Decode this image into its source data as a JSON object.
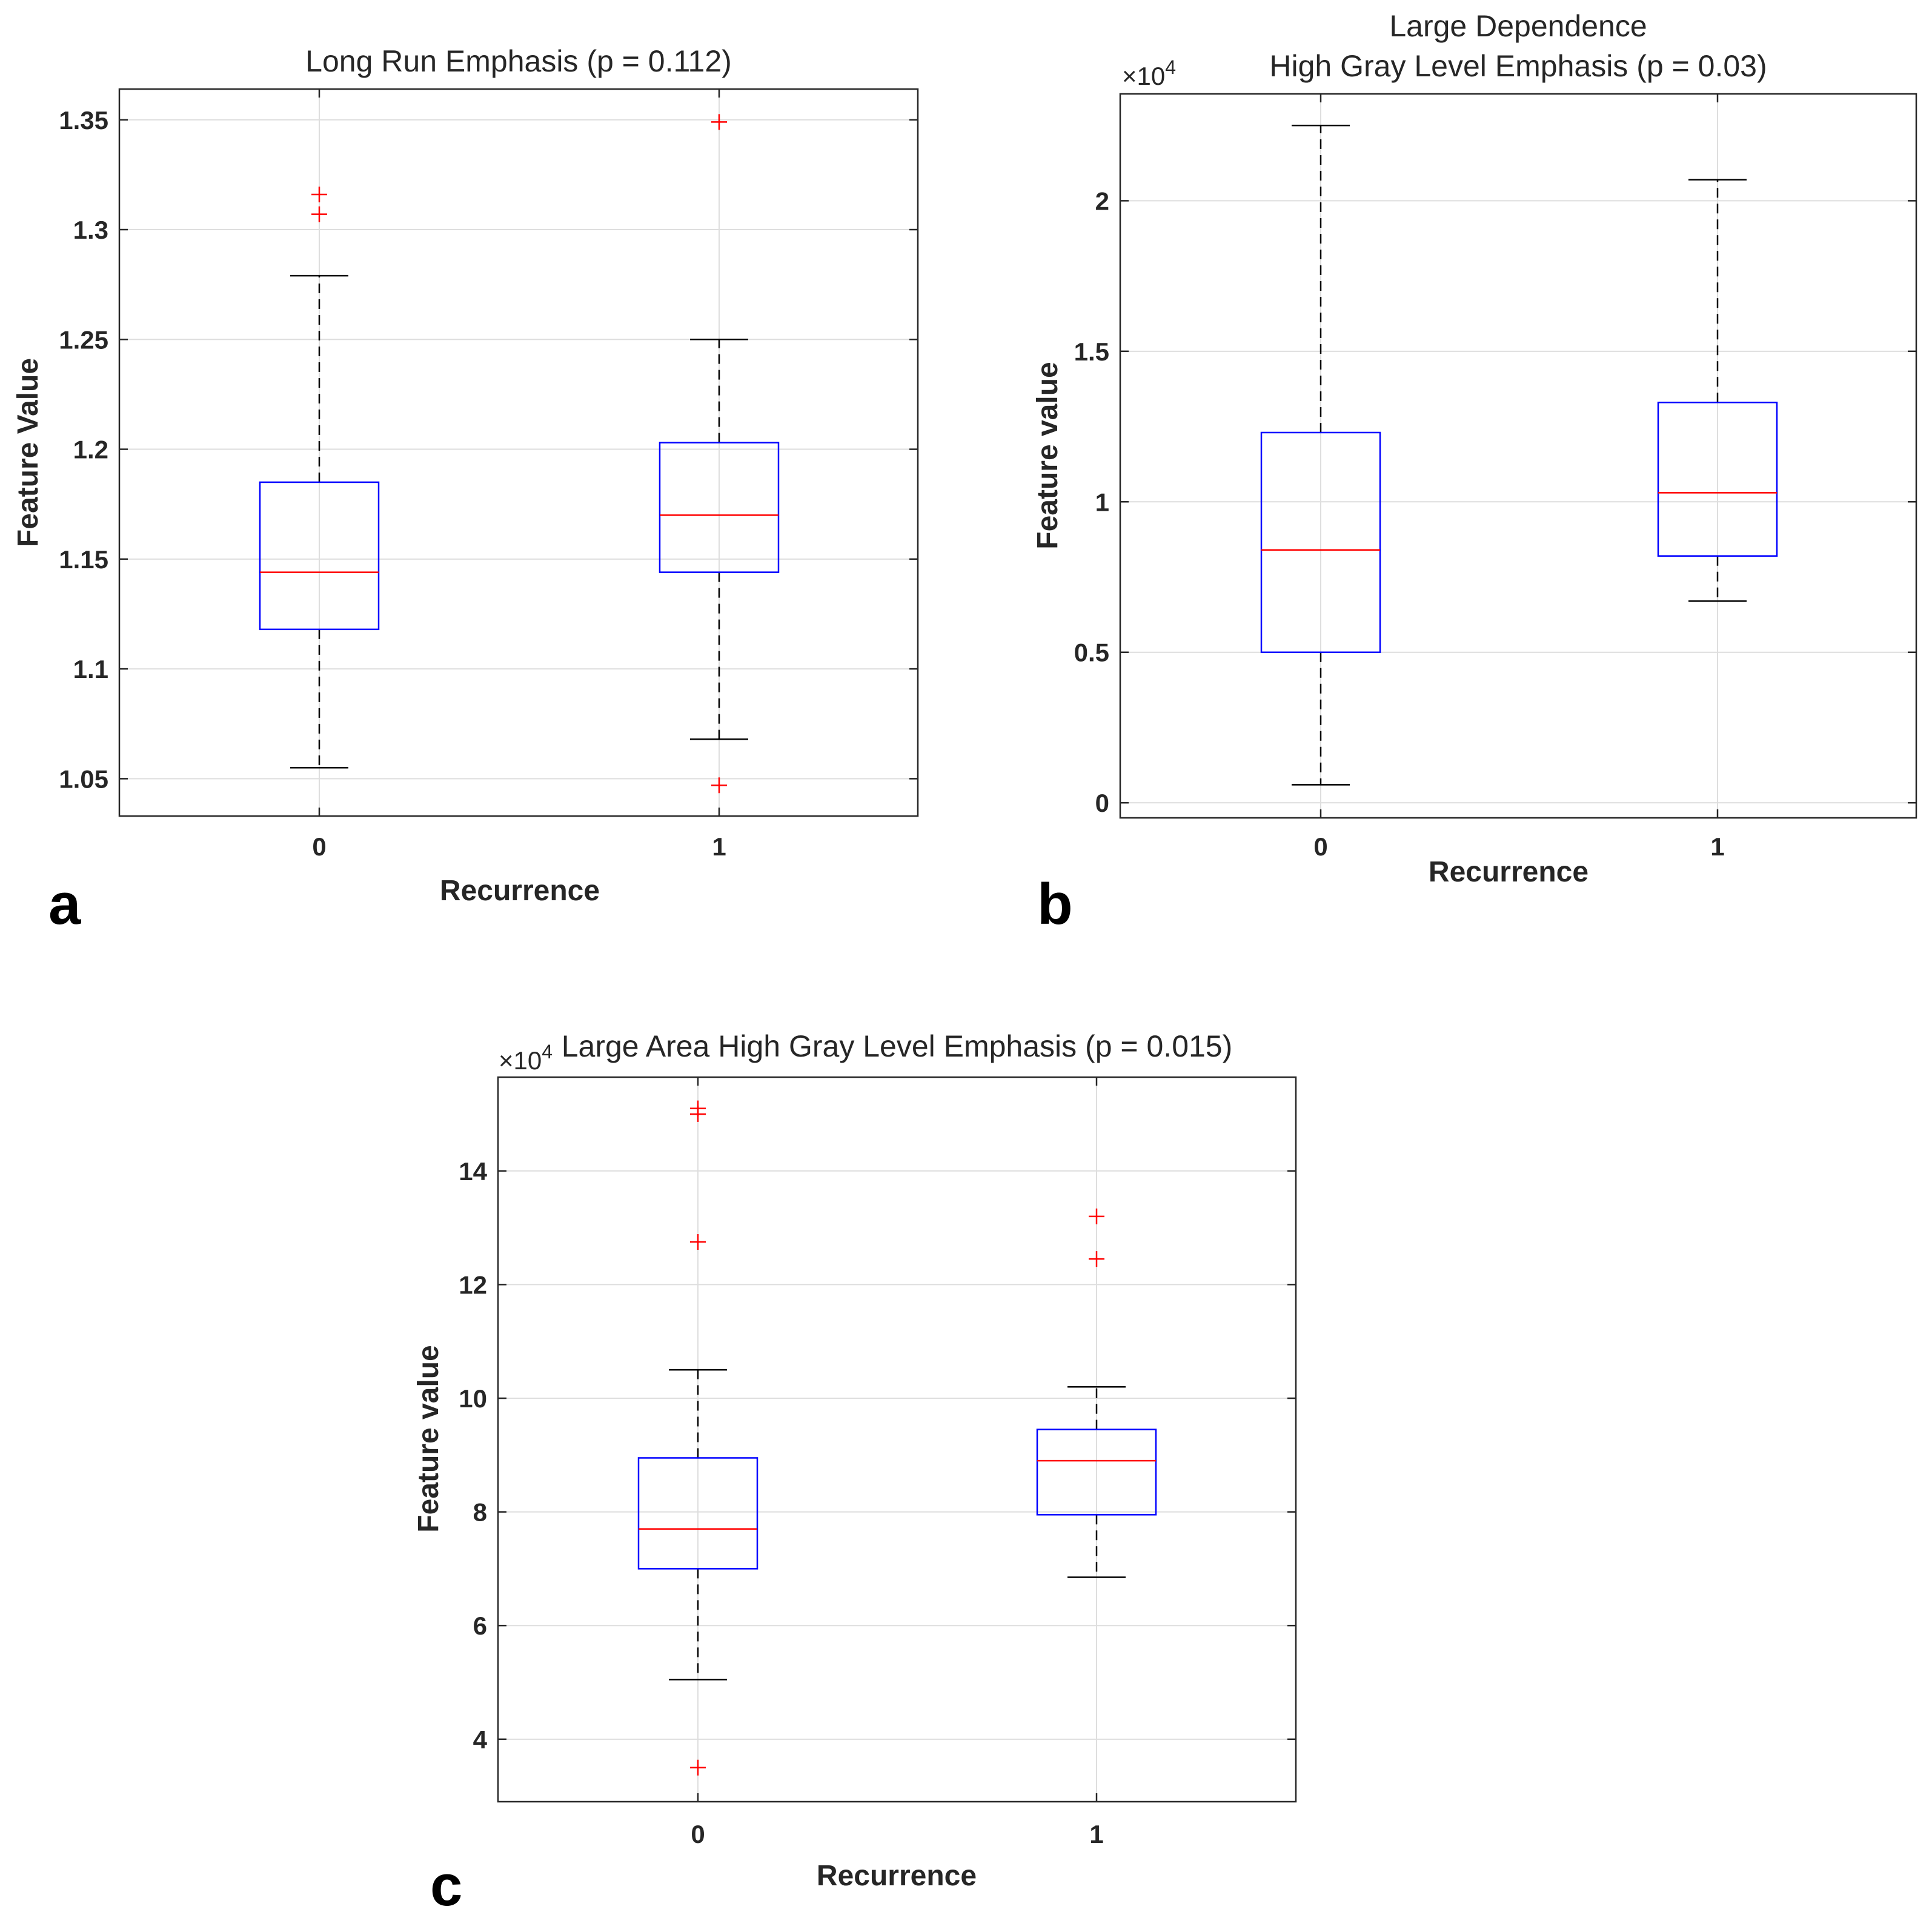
{
  "colors": {
    "box": "#0000ff",
    "median": "#ff0000",
    "outlier": "#ff0000",
    "whisker": "#000000",
    "grid": "#dedede",
    "axis": "#262626"
  },
  "chart_data": [
    {
      "type": "box",
      "panel_label": "a",
      "title": [
        "Long Run Emphasis (p = 0.112)"
      ],
      "xlabel": "Recurrence",
      "ylabel": "Feature Value",
      "exponent": "",
      "grid": true,
      "ylim": [
        1.033,
        1.364
      ],
      "yticks": [
        1.05,
        1.1,
        1.15,
        1.2,
        1.25,
        1.3,
        1.35
      ],
      "ytick_labels": [
        "1.05",
        "1.1",
        "1.15",
        "1.2",
        "1.25",
        "1.3",
        "1.35"
      ],
      "categories": [
        "0",
        "1"
      ],
      "boxes": [
        {
          "category": "0",
          "whisker_low": 1.055,
          "q1": 1.118,
          "median": 1.144,
          "q3": 1.185,
          "whisker_high": 1.279,
          "outliers": [
            1.307,
            1.316
          ]
        },
        {
          "category": "1",
          "whisker_low": 1.068,
          "q1": 1.144,
          "median": 1.17,
          "q3": 1.203,
          "whisker_high": 1.25,
          "outliers": [
            1.047,
            1.349
          ]
        }
      ]
    },
    {
      "type": "box",
      "panel_label": "b",
      "title": [
        "Large Dependence",
        "High Gray Level Emphasis (p = 0.03)"
      ],
      "xlabel": "Recurrence",
      "ylabel": "Feature value",
      "exponent": "4",
      "grid": true,
      "ylim": [
        -0.05,
        2.355
      ],
      "yticks": [
        0,
        0.5,
        1,
        1.5,
        2
      ],
      "ytick_labels": [
        "0",
        "0.5",
        "1",
        "1.5",
        "2"
      ],
      "categories": [
        "0",
        "1"
      ],
      "boxes": [
        {
          "category": "0",
          "whisker_low": 0.06,
          "q1": 0.5,
          "median": 0.84,
          "q3": 1.23,
          "whisker_high": 2.25,
          "outliers": []
        },
        {
          "category": "1",
          "whisker_low": 0.67,
          "q1": 0.82,
          "median": 1.03,
          "q3": 1.33,
          "whisker_high": 2.07,
          "outliers": []
        }
      ]
    },
    {
      "type": "box",
      "panel_label": "c",
      "title": [
        "Large Area High Gray Level Emphasis (p = 0.015)"
      ],
      "xlabel": "Recurrence",
      "ylabel": "Feature value",
      "exponent": "4",
      "grid": true,
      "ylim": [
        2.9,
        15.65
      ],
      "yticks": [
        4,
        6,
        8,
        10,
        12,
        14
      ],
      "ytick_labels": [
        "4",
        "6",
        "8",
        "10",
        "12",
        "14"
      ],
      "categories": [
        "0",
        "1"
      ],
      "boxes": [
        {
          "category": "0",
          "whisker_low": 5.05,
          "q1": 7.0,
          "median": 7.7,
          "q3": 8.95,
          "whisker_high": 10.5,
          "outliers": [
            3.5,
            12.75,
            15.0,
            15.1
          ]
        },
        {
          "category": "1",
          "whisker_low": 6.85,
          "q1": 7.95,
          "median": 8.9,
          "q3": 9.45,
          "whisker_high": 10.2,
          "outliers": [
            12.45,
            13.2
          ]
        }
      ]
    }
  ]
}
